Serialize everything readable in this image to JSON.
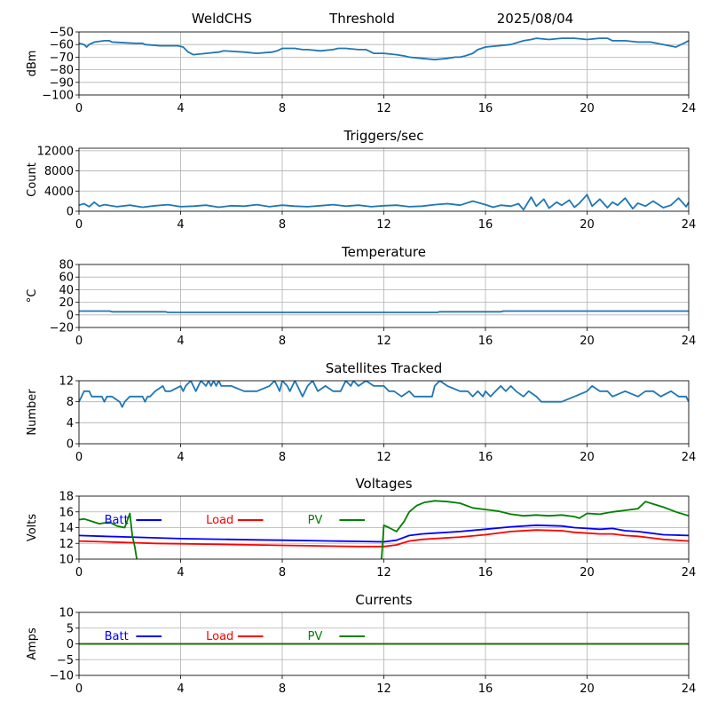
{
  "header": {
    "left": "WeldCHS",
    "center": "Threshold",
    "right": "2025/08/04"
  },
  "colors": {
    "blue": "#1f77b4",
    "batt": "#0000ff",
    "load": "#ff0000",
    "pv": "#008000"
  },
  "chart_data": [
    {
      "id": "signal",
      "type": "line",
      "title": "",
      "ylabel": "dBm",
      "xlim": [
        0,
        24
      ],
      "ylim": [
        -100,
        -50
      ],
      "xticks": [
        0,
        4,
        8,
        12,
        16,
        20,
        24
      ],
      "yticks": [
        -100,
        -90,
        -80,
        -70,
        -60,
        -50
      ],
      "grid": true,
      "series": [
        {
          "color": "#1f77b4",
          "x": [
            0,
            0.2,
            0.3,
            0.4,
            0.6,
            1,
            1.2,
            1.3,
            2.2,
            2.5,
            2.6,
            3.2,
            3.9,
            4.1,
            4.3,
            4.5,
            5,
            5.5,
            5.7,
            6.5,
            7,
            7.6,
            7.8,
            8,
            8.5,
            8.8,
            9,
            9.5,
            10,
            10.2,
            10.5,
            11,
            11.3,
            11.6,
            12,
            12.5,
            12.8,
            13,
            13.5,
            14,
            14.5,
            14.8,
            15,
            15.2,
            15.5,
            15.7,
            16,
            16.5,
            17,
            17.5,
            17.8,
            18,
            18.5,
            19,
            19.5,
            20,
            20.5,
            20.8,
            21,
            21.5,
            22,
            22.5,
            23,
            23.5,
            23.8,
            24
          ],
          "y": [
            -59,
            -60,
            -62,
            -60,
            -58,
            -57,
            -57,
            -58,
            -59,
            -59,
            -60,
            -61,
            -61,
            -62,
            -66,
            -68,
            -67,
            -66,
            -65,
            -66,
            -67,
            -66,
            -65,
            -63,
            -63,
            -64,
            -64,
            -65,
            -64,
            -63,
            -63,
            -64,
            -64,
            -67,
            -67,
            -68,
            -69,
            -70,
            -71,
            -72,
            -71,
            -70,
            -70,
            -69,
            -67,
            -64,
            -62,
            -61,
            -60,
            -57,
            -56,
            -55,
            -56,
            -55,
            -55,
            -56,
            -55,
            -55,
            -57,
            -57,
            -58,
            -58,
            -60,
            -62,
            -59,
            -57
          ]
        }
      ]
    },
    {
      "id": "triggers",
      "type": "line",
      "title": "Triggers/sec",
      "ylabel": "Count",
      "xlim": [
        0,
        24
      ],
      "ylim": [
        0,
        12500
      ],
      "xticks": [
        0,
        4,
        8,
        12,
        16,
        20,
        24
      ],
      "yticks": [
        0,
        4000,
        8000,
        12000
      ],
      "grid": true,
      "series": [
        {
          "color": "#1f77b4",
          "x": [
            0,
            0.2,
            0.4,
            0.6,
            0.8,
            1,
            1.5,
            2,
            2.5,
            3,
            3.5,
            4,
            4.5,
            5,
            5.5,
            6,
            6.5,
            7,
            7.5,
            8,
            8.5,
            9,
            9.5,
            10,
            10.5,
            11,
            11.5,
            12,
            12.5,
            13,
            13.5,
            14,
            14.5,
            15,
            15.5,
            16,
            16.3,
            16.6,
            17,
            17.3,
            17.5,
            17.8,
            18,
            18.3,
            18.5,
            18.8,
            19,
            19.3,
            19.5,
            19.7,
            20,
            20.2,
            20.5,
            20.8,
            21,
            21.2,
            21.5,
            21.8,
            22,
            22.3,
            22.6,
            23,
            23.3,
            23.6,
            23.9,
            24
          ],
          "y": [
            1200,
            1500,
            900,
            1800,
            1000,
            1300,
            900,
            1200,
            800,
            1100,
            1300,
            900,
            1000,
            1200,
            800,
            1100,
            1000,
            1300,
            900,
            1200,
            1000,
            900,
            1100,
            1300,
            1000,
            1200,
            900,
            1100,
            1200,
            900,
            1000,
            1300,
            1500,
            1200,
            2000,
            1300,
            800,
            1200,
            1000,
            1500,
            300,
            2800,
            1000,
            2400,
            600,
            1800,
            1200,
            2200,
            800,
            1600,
            3300,
            1000,
            2400,
            700,
            1800,
            1200,
            2600,
            500,
            1600,
            1000,
            2000,
            700,
            1200,
            2600,
            900,
            1800
          ]
        }
      ]
    },
    {
      "id": "temperature",
      "type": "line",
      "title": "Temperature",
      "ylabel": "°C",
      "xlim": [
        0,
        24
      ],
      "ylim": [
        -20,
        80
      ],
      "xticks": [
        0,
        4,
        8,
        12,
        16,
        20,
        24
      ],
      "yticks": [
        -20,
        0,
        20,
        40,
        60,
        80
      ],
      "grid": true,
      "series": [
        {
          "color": "#1f77b4",
          "x": [
            0,
            1.2,
            1.3,
            3.4,
            3.5,
            14.1,
            14.2,
            16.6,
            16.7,
            24
          ],
          "y": [
            6,
            6,
            5,
            5,
            4,
            4,
            5,
            5,
            6,
            6
          ]
        }
      ]
    },
    {
      "id": "satellites",
      "type": "line",
      "title": "Satellites Tracked",
      "ylabel": "Number",
      "xlim": [
        0,
        24
      ],
      "ylim": [
        0,
        12
      ],
      "xticks": [
        0,
        4,
        8,
        12,
        16,
        20,
        24
      ],
      "yticks": [
        0,
        4,
        8,
        12
      ],
      "grid": true,
      "series": [
        {
          "color": "#1f77b4",
          "x": [
            0,
            0.1,
            0.2,
            0.4,
            0.5,
            0.9,
            1,
            1.1,
            1.3,
            1.6,
            1.7,
            1.8,
            2,
            2.5,
            2.6,
            2.7,
            2.8,
            3,
            3.3,
            3.4,
            3.6,
            4,
            4.1,
            4.2,
            4.4,
            4.5,
            4.6,
            4.8,
            5,
            5.1,
            5.2,
            5.3,
            5.4,
            5.5,
            5.6,
            6,
            6.5,
            7,
            7.5,
            7.7,
            7.8,
            7.9,
            8,
            8.2,
            8.3,
            8.5,
            8.6,
            8.8,
            9,
            9.2,
            9.4,
            9.7,
            10,
            10.3,
            10.5,
            10.7,
            10.8,
            11,
            11.3,
            11.6,
            12,
            12.2,
            12.4,
            12.7,
            13,
            13.2,
            13.5,
            13.9,
            14,
            14.2,
            14.5,
            15,
            15.3,
            15.5,
            15.7,
            15.9,
            16,
            16.2,
            16.4,
            16.6,
            16.8,
            17,
            17.2,
            17.5,
            17.7,
            18,
            18.2,
            18.5,
            19,
            19.5,
            20,
            20.2,
            20.5,
            20.8,
            21,
            21.5,
            22,
            22.3,
            22.6,
            22.9,
            23.3,
            23.6,
            23.9,
            24
          ],
          "y": [
            8,
            9,
            10,
            10,
            9,
            9,
            8,
            9,
            9,
            8,
            7,
            8,
            9,
            9,
            8,
            9,
            9,
            10,
            11,
            10,
            10,
            11,
            10,
            11,
            12,
            11,
            10,
            12,
            11,
            12,
            11,
            12,
            11,
            12,
            11,
            11,
            10,
            10,
            11,
            12,
            11,
            10,
            12,
            11,
            10,
            12,
            11,
            9,
            11,
            12,
            10,
            11,
            10,
            10,
            12,
            11,
            12,
            11,
            12,
            11,
            11,
            10,
            10,
            9,
            10,
            9,
            9,
            9,
            11,
            12,
            11,
            10,
            10,
            9,
            10,
            9,
            10,
            9,
            10,
            11,
            10,
            11,
            10,
            9,
            10,
            9,
            8,
            8,
            8,
            9,
            10,
            11,
            10,
            10,
            9,
            10,
            9,
            10,
            10,
            9,
            10,
            9,
            9,
            8
          ]
        }
      ]
    },
    {
      "id": "voltages",
      "type": "line",
      "title": "Voltages",
      "ylabel": "Volts",
      "xlim": [
        0,
        24
      ],
      "ylim": [
        10,
        18
      ],
      "xticks": [
        0,
        4,
        8,
        12,
        16,
        20,
        24
      ],
      "yticks": [
        10,
        12,
        14,
        16,
        18
      ],
      "grid": true,
      "legend": [
        {
          "label": "Batt",
          "color": "#0000ff",
          "x": 1.0
        },
        {
          "label": "Load",
          "color": "#ff0000",
          "x": 5.0
        },
        {
          "label": "PV",
          "color": "#008000",
          "x": 9.0
        }
      ],
      "series": [
        {
          "name": "Batt",
          "color": "#0000ff",
          "x": [
            0,
            1,
            2,
            3,
            4,
            5,
            6,
            7,
            8,
            9,
            10,
            11,
            12,
            12.5,
            13,
            13.5,
            14,
            15,
            16,
            17,
            18,
            19,
            19.5,
            20,
            20.5,
            21,
            21.5,
            22,
            22.5,
            23,
            24
          ],
          "y": [
            13.0,
            12.9,
            12.8,
            12.7,
            12.6,
            12.55,
            12.5,
            12.45,
            12.4,
            12.35,
            12.3,
            12.25,
            12.2,
            12.4,
            13.0,
            13.2,
            13.3,
            13.5,
            13.8,
            14.1,
            14.3,
            14.2,
            14.0,
            13.9,
            13.8,
            13.9,
            13.6,
            13.5,
            13.3,
            13.1,
            13.0
          ]
        },
        {
          "name": "Load",
          "color": "#ff0000",
          "x": [
            0,
            1,
            2,
            3,
            4,
            5,
            6,
            7,
            8,
            9,
            10,
            11,
            12,
            12.5,
            13,
            13.5,
            14,
            15,
            16,
            17,
            18,
            19,
            19.5,
            20,
            20.5,
            21,
            21.5,
            22,
            22.5,
            23,
            24
          ],
          "y": [
            12.3,
            12.2,
            12.1,
            12.0,
            11.95,
            11.9,
            11.85,
            11.8,
            11.75,
            11.7,
            11.65,
            11.6,
            11.6,
            11.8,
            12.3,
            12.5,
            12.6,
            12.8,
            13.1,
            13.5,
            13.7,
            13.6,
            13.4,
            13.3,
            13.2,
            13.2,
            13.0,
            12.9,
            12.7,
            12.5,
            12.3
          ]
        },
        {
          "name": "PV",
          "color": "#008000",
          "x": [
            0,
            0.2,
            0.5,
            0.8,
            1.2,
            1.5,
            1.8,
            2,
            2.1,
            2.2,
            2.3,
            null,
            11.9,
            12,
            12.2,
            12.5,
            12.8,
            13,
            13.3,
            13.6,
            14,
            14.5,
            15,
            15.5,
            16,
            16.5,
            17,
            17.5,
            18,
            18.5,
            19,
            19.5,
            19.7,
            20,
            20.5,
            21,
            21.5,
            22,
            22.3,
            22.6,
            23,
            23.5,
            24
          ],
          "y": [
            15,
            15.1,
            14.8,
            14.5,
            14.7,
            14.2,
            14.0,
            15.8,
            13.0,
            11.5,
            9.5,
            null,
            9.5,
            14.3,
            14.0,
            13.5,
            14.8,
            16.0,
            16.8,
            17.2,
            17.4,
            17.3,
            17.1,
            16.5,
            16.3,
            16.1,
            15.7,
            15.5,
            15.6,
            15.5,
            15.6,
            15.4,
            15.2,
            15.8,
            15.7,
            16.0,
            16.2,
            16.4,
            17.3,
            17.0,
            16.6,
            16.0,
            15.5
          ]
        }
      ]
    },
    {
      "id": "currents",
      "type": "line",
      "title": "Currents",
      "ylabel": "Amps",
      "xlim": [
        0,
        24
      ],
      "ylim": [
        -10,
        10
      ],
      "xticks": [
        0,
        4,
        8,
        12,
        16,
        20,
        24
      ],
      "yticks": [
        -10,
        -5,
        0,
        5,
        10
      ],
      "grid": true,
      "legend": [
        {
          "label": "Batt",
          "color": "#0000ff",
          "x": 1.0
        },
        {
          "label": "Load",
          "color": "#ff0000",
          "x": 5.0
        },
        {
          "label": "PV",
          "color": "#008000",
          "x": 9.0
        }
      ],
      "series": [
        {
          "name": "Batt",
          "color": "#0000ff",
          "x": [
            0,
            24
          ],
          "y": [
            0,
            0
          ]
        },
        {
          "name": "Load",
          "color": "#ff0000",
          "x": [
            0,
            24
          ],
          "y": [
            0,
            0
          ]
        },
        {
          "name": "PV",
          "color": "#008000",
          "x": [
            0,
            24
          ],
          "y": [
            0,
            0
          ]
        }
      ]
    }
  ]
}
